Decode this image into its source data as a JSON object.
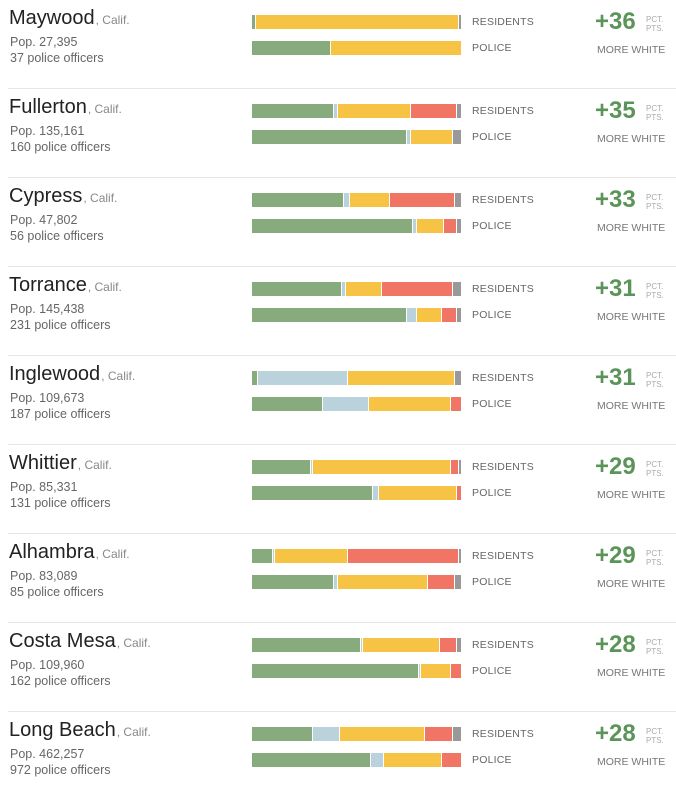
{
  "colors": {
    "white": "#88ab7e",
    "black": "#b9d2db",
    "hispanic": "#f6c344",
    "asian": "#f07564",
    "other": "#999999",
    "difference": "#5b9458"
  },
  "labels": {
    "residents": "RESIDENTS",
    "police": "POLICE",
    "unit_line1": "PCT.",
    "unit_line2": "PTS.",
    "more_white": "MORE WHITE"
  },
  "chart_data": {
    "type": "bar",
    "orientation": "horizontal",
    "stacked": true,
    "normalized": true,
    "segment_order": [
      "white",
      "black",
      "hispanic",
      "asian",
      "other"
    ],
    "rows": [
      {
        "city": "Maywood",
        "state": ", Calif.",
        "population": "Pop. 27,395",
        "officers": "37 police officers",
        "difference": "+36",
        "residents": [
          2,
          0,
          97,
          0,
          1
        ],
        "police": [
          38,
          0,
          62,
          0,
          0
        ]
      },
      {
        "city": "Fullerton",
        "state": ", Calif.",
        "population": "Pop. 135,161",
        "officers": "160 police officers",
        "difference": "+35",
        "residents": [
          39,
          2,
          35,
          22,
          2
        ],
        "police": [
          74,
          2,
          20,
          0,
          4
        ]
      },
      {
        "city": "Cypress",
        "state": ", Calif.",
        "population": "Pop. 47,802",
        "officers": "56 police officers",
        "difference": "+33",
        "residents": [
          44,
          3,
          19,
          31,
          3
        ],
        "police": [
          77,
          2,
          13,
          6,
          2
        ]
      },
      {
        "city": "Torrance",
        "state": ", Calif.",
        "population": "Pop. 145,438",
        "officers": "231 police officers",
        "difference": "+31",
        "residents": [
          43,
          2,
          17,
          34,
          4
        ],
        "police": [
          74,
          5,
          12,
          7,
          2
        ]
      },
      {
        "city": "Inglewood",
        "state": ", Calif.",
        "population": "Pop. 109,673",
        "officers": "187 police officers",
        "difference": "+31",
        "residents": [
          3,
          43,
          51,
          0,
          3
        ],
        "police": [
          34,
          22,
          39,
          5,
          0
        ]
      },
      {
        "city": "Whittier",
        "state": ", Calif.",
        "population": "Pop. 85,331",
        "officers": "131 police officers",
        "difference": "+29",
        "residents": [
          28,
          1,
          66,
          4,
          1
        ],
        "police": [
          58,
          3,
          37,
          2,
          0
        ]
      },
      {
        "city": "Alhambra",
        "state": ", Calif.",
        "population": "Pop. 83,089",
        "officers": "85 police officers",
        "difference": "+29",
        "residents": [
          10,
          1,
          35,
          53,
          1
        ],
        "police": [
          39,
          2,
          43,
          13,
          3
        ]
      },
      {
        "city": "Costa Mesa",
        "state": ", Calif.",
        "population": "Pop. 109,960",
        "officers": "162 police officers",
        "difference": "+28",
        "residents": [
          52,
          1,
          37,
          8,
          2
        ],
        "police": [
          80,
          1,
          14,
          5,
          0
        ]
      },
      {
        "city": "Long Beach",
        "state": ", Calif.",
        "population": "Pop. 462,257",
        "officers": "972 police officers",
        "difference": "+28",
        "residents": [
          29,
          13,
          41,
          13,
          4
        ],
        "police": [
          57,
          6,
          28,
          9,
          0
        ]
      }
    ]
  }
}
